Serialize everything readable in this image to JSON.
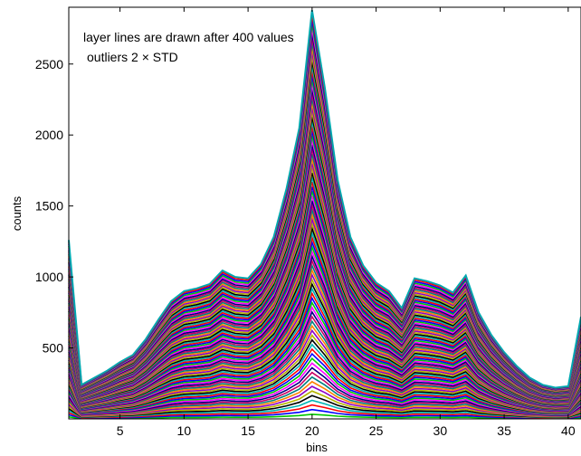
{
  "chart_data": {
    "type": "area",
    "subtype": "stacked-layer-lines",
    "annotations": [
      "layer lines are drawn after 400 values",
      "outliers 2 × STD"
    ],
    "xlabel": "bins",
    "ylabel": "counts",
    "xlim": [
      1,
      41
    ],
    "ylim": [
      0,
      2900
    ],
    "x_ticks": [
      5,
      10,
      15,
      20,
      25,
      30,
      35,
      40
    ],
    "y_ticks": [
      500,
      1000,
      1500,
      2000,
      2500
    ],
    "grid": false,
    "legend": "none",
    "series": [
      {
        "layer": "final",
        "x": [
          1,
          2,
          3,
          4,
          5,
          6,
          7,
          8,
          9,
          10,
          11,
          12,
          13,
          14,
          15,
          16,
          17,
          18,
          19,
          20,
          21,
          22,
          23,
          24,
          25,
          26,
          27,
          28,
          29,
          30,
          31,
          32,
          33,
          34,
          35,
          36,
          37,
          38,
          39,
          40,
          41
        ],
        "values": [
          1260,
          240,
          290,
          340,
          400,
          450,
          560,
          700,
          830,
          900,
          920,
          950,
          1045,
          1000,
          990,
          1090,
          1280,
          1620,
          2050,
          2880,
          2330,
          1680,
          1280,
          1080,
          960,
          900,
          780,
          990,
          970,
          940,
          890,
          1010,
          750,
          590,
          470,
          370,
          290,
          240,
          220,
          230,
          720
        ]
      }
    ],
    "layer_colors": [
      "#ff00ff",
      "#00c800",
      "#0000ff",
      "#ff0000",
      "#00b4b4",
      "#000000",
      "#b4b400",
      "#8c00c8",
      "#ff8000",
      "#008080",
      "#c80064",
      "#000080"
    ]
  }
}
